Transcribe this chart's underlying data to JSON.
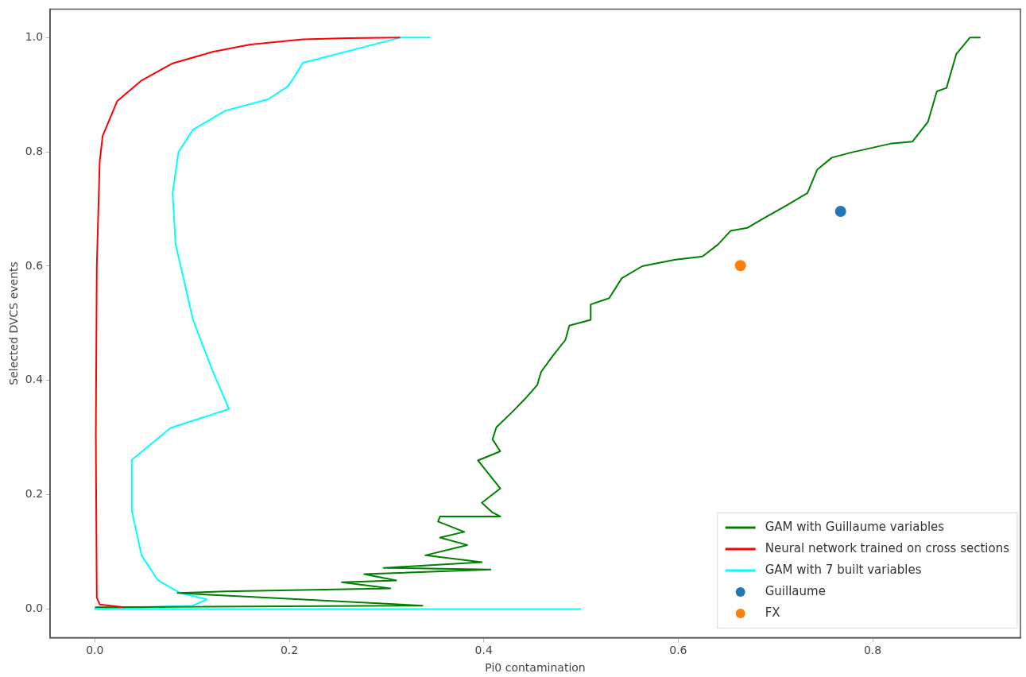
{
  "chart_data": {
    "type": "line",
    "xlabel": "Pi0 contamination",
    "ylabel": "Selected DVCS events",
    "xlim": [
      -0.046,
      0.952
    ],
    "ylim": [
      -0.05,
      1.05
    ],
    "xticks": [
      {
        "value": 0,
        "label": "0.0"
      },
      {
        "value": 0.2,
        "label": "0.2"
      },
      {
        "value": 0.4,
        "label": "0.4"
      },
      {
        "value": 0.6,
        "label": "0.6"
      },
      {
        "value": 0.8,
        "label": "0.8"
      }
    ],
    "yticks": [
      {
        "value": 0,
        "label": "0.0"
      },
      {
        "value": 0.2,
        "label": "0.2"
      },
      {
        "value": 0.4,
        "label": "0.4"
      },
      {
        "value": 0.6,
        "label": "0.6"
      },
      {
        "value": 0.8,
        "label": "0.8"
      },
      {
        "value": 1,
        "label": "1.0"
      }
    ],
    "grid": false,
    "legend": "bottom right",
    "marker": "none",
    "line_style": "solid",
    "series": [
      {
        "name": "GAM with Guillaume variables",
        "color": "#008000",
        "x": [
          0.0,
          0.337,
          0.085,
          0.134,
          0.304,
          0.254,
          0.31,
          0.277,
          0.407,
          0.297,
          0.398,
          0.34,
          0.383,
          0.355,
          0.38,
          0.353,
          0.355,
          0.417,
          0.409,
          0.398,
          0.417,
          0.409,
          0.394,
          0.417,
          0.409,
          0.413,
          0.43,
          0.442,
          0.455,
          0.459,
          0.471,
          0.484,
          0.488,
          0.51,
          0.51,
          0.529,
          0.542,
          0.563,
          0.596,
          0.625,
          0.641,
          0.654,
          0.671,
          0.687,
          0.712,
          0.733,
          0.743,
          0.758,
          0.778,
          0.82,
          0.841,
          0.857,
          0.866,
          0.876,
          0.886,
          0.9,
          0.911
        ],
        "values": [
          0.003,
          0.006,
          0.028,
          0.031,
          0.036,
          0.047,
          0.05,
          0.061,
          0.069,
          0.072,
          0.082,
          0.094,
          0.112,
          0.125,
          0.135,
          0.153,
          0.162,
          0.162,
          0.169,
          0.186,
          0.211,
          0.228,
          0.26,
          0.276,
          0.297,
          0.318,
          0.346,
          0.367,
          0.392,
          0.415,
          0.443,
          0.471,
          0.496,
          0.506,
          0.533,
          0.544,
          0.579,
          0.6,
          0.611,
          0.617,
          0.638,
          0.662,
          0.667,
          0.683,
          0.707,
          0.728,
          0.769,
          0.79,
          0.799,
          0.815,
          0.818,
          0.853,
          0.906,
          0.912,
          0.971,
          1.0,
          1.0
        ]
      },
      {
        "name": "Neural network trained on cross sections",
        "color": "#ff0000",
        "x": [
          0.03,
          0.005,
          0.002,
          0.001,
          0.002,
          0.005,
          0.008,
          0.023,
          0.048,
          0.08,
          0.121,
          0.16,
          0.214,
          0.26,
          0.314
        ],
        "values": [
          0.003,
          0.008,
          0.02,
          0.3,
          0.6,
          0.783,
          0.828,
          0.889,
          0.925,
          0.955,
          0.975,
          0.988,
          0.997,
          0.999,
          1.0
        ]
      },
      {
        "name": "GAM with 7 built variables",
        "color": "#00ffff",
        "x": [
          0.345,
          0.314,
          0.214,
          0.204,
          0.198,
          0.178,
          0.134,
          0.101,
          0.086,
          0.08,
          0.083,
          0.101,
          0.121,
          0.138,
          0.078,
          0.038,
          0.038,
          0.048,
          0.065,
          0.088,
          0.115,
          0.101,
          0.0,
          0.5
        ],
        "values": [
          1.0,
          1.0,
          0.956,
          0.928,
          0.914,
          0.892,
          0.872,
          0.839,
          0.8,
          0.728,
          0.639,
          0.506,
          0.417,
          0.35,
          0.317,
          0.261,
          0.172,
          0.094,
          0.05,
          0.028,
          0.017,
          0.006,
          0.0,
          0.0
        ]
      },
      {
        "name": "Guillaume",
        "type": "scatter",
        "marker": "circle",
        "color": "#1f77b4",
        "x": [
          0.767
        ],
        "values": [
          0.696
        ]
      },
      {
        "name": "FX",
        "type": "scatter",
        "marker": "circle",
        "color": "#ff7f0e",
        "x": [
          0.664
        ],
        "values": [
          0.601
        ]
      }
    ]
  }
}
